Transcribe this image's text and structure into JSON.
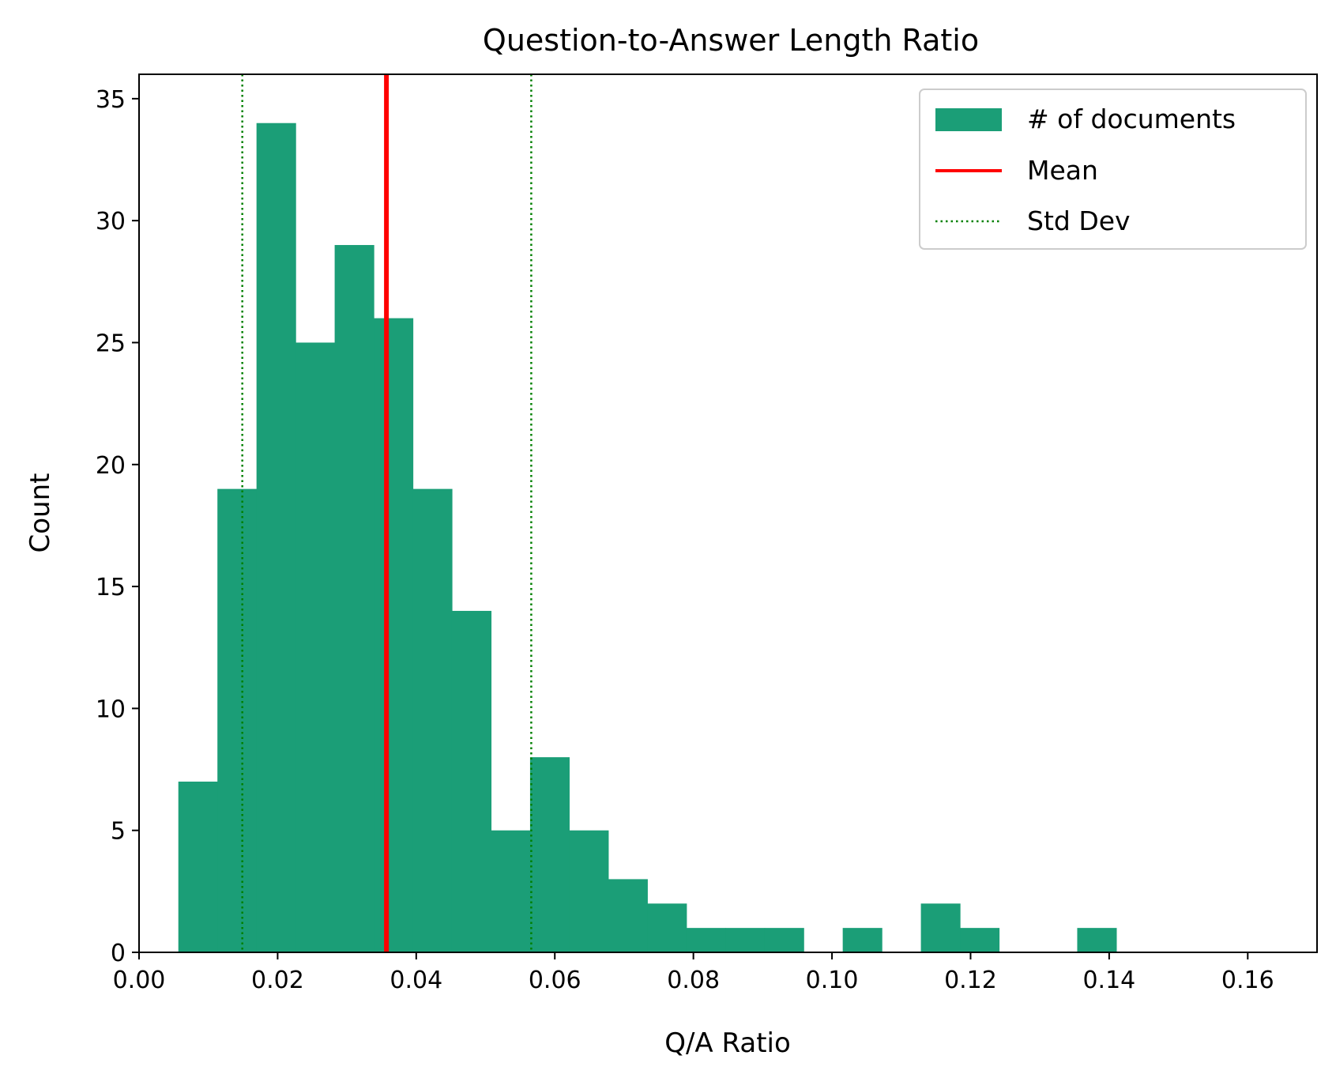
{
  "chart_data": {
    "type": "bar",
    "title": "Question-to-Answer Length Ratio",
    "xlabel": "Q/A Ratio",
    "ylabel": "Count",
    "xlim": [
      0,
      0.17
    ],
    "ylim": [
      0,
      36
    ],
    "xticks": [
      "0.00",
      "0.02",
      "0.04",
      "0.06",
      "0.08",
      "0.10",
      "0.12",
      "0.14",
      "0.16"
    ],
    "yticks": [
      "0",
      "5",
      "10",
      "15",
      "20",
      "25",
      "30",
      "35"
    ],
    "bin_edges": [
      0.00567,
      0.01131,
      0.01695,
      0.02259,
      0.02823,
      0.03387,
      0.03951,
      0.04515,
      0.05079,
      0.05643,
      0.06207,
      0.06771,
      0.07335,
      0.07899,
      0.08463,
      0.09027,
      0.09591,
      0.10155,
      0.10719,
      0.11283,
      0.11847,
      0.12411,
      0.12975,
      0.13539,
      0.14103
    ],
    "counts": [
      7,
      19,
      34,
      25,
      29,
      26,
      19,
      14,
      5,
      8,
      5,
      3,
      2,
      1,
      1,
      1,
      0,
      1,
      0,
      2,
      1,
      0,
      0,
      1
    ],
    "mean": 0.0357,
    "std_dev_lines": [
      0.0149,
      0.0566
    ],
    "legend": {
      "placement": "top-right",
      "entries": [
        {
          "label": "# of documents",
          "kind": "patch",
          "color": "#1b9e77"
        },
        {
          "label": "Mean",
          "kind": "line",
          "color": "#ff0000"
        },
        {
          "label": "Std Dev",
          "kind": "dotted-line",
          "color": "#008000"
        }
      ]
    },
    "colors": {
      "bars": "#1b9e77",
      "mean": "#ff0000",
      "std": "#008000"
    },
    "grid": false
  }
}
